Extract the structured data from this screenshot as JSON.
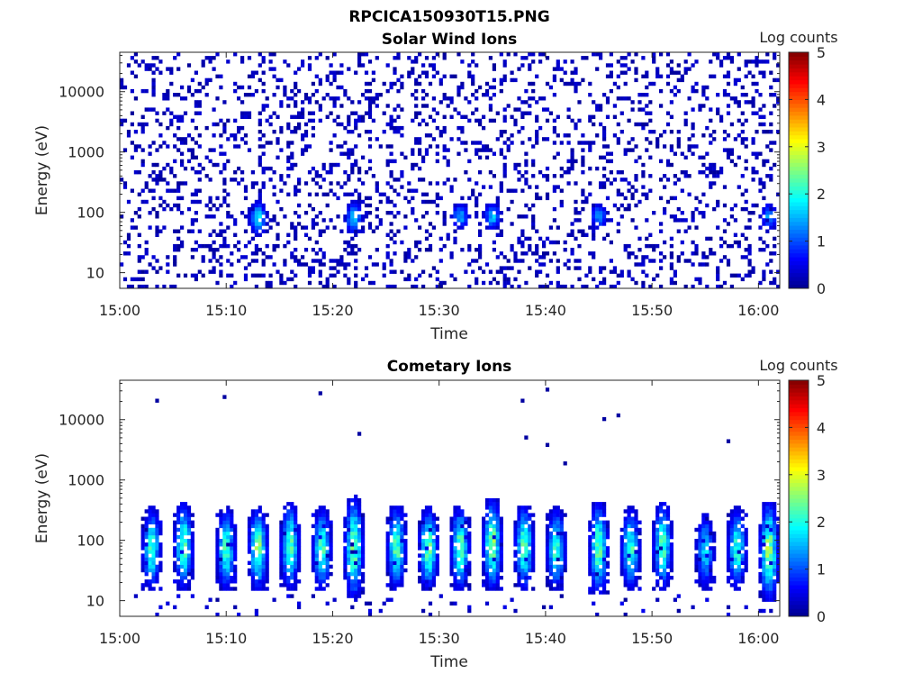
{
  "figure_title": "RPCICA150930T15.PNG",
  "colormap": [
    "#00008f",
    "#0000ff",
    "#0080ff",
    "#00ffff",
    "#80ff80",
    "#ffff00",
    "#ff8000",
    "#ff0000",
    "#800000"
  ],
  "chart_data": [
    {
      "type": "heatmap",
      "title": "Solar Wind Ions",
      "xlabel": "Time",
      "ylabel": "Energy (eV)",
      "y_scale": "log",
      "xlim": [
        "15:00",
        "16:02"
      ],
      "ylim": [
        5.5,
        45000
      ],
      "x_ticks": [
        "15:00",
        "15:10",
        "15:20",
        "15:30",
        "15:40",
        "15:50",
        "16:00"
      ],
      "y_ticks": [
        10,
        100,
        1000,
        10000
      ],
      "y_tick_labels": [
        "10",
        "100",
        "1000",
        "10000"
      ],
      "colorbar": {
        "label": "Log counts",
        "range": [
          0,
          5
        ],
        "ticks": [
          "0",
          "1",
          "2",
          "3",
          "4",
          "5"
        ]
      },
      "pattern": "sparse",
      "bursts": [
        {
          "time": "15:13",
          "energy_lo": 40,
          "energy_hi": 160,
          "peak_log_counts": 1.8
        },
        {
          "time": "15:22",
          "energy_lo": 40,
          "energy_hi": 160,
          "peak_log_counts": 1.6
        },
        {
          "time": "15:32",
          "energy_lo": 50,
          "energy_hi": 150,
          "peak_log_counts": 1.5
        },
        {
          "time": "15:35",
          "energy_lo": 50,
          "energy_hi": 150,
          "peak_log_counts": 1.6
        },
        {
          "time": "15:45",
          "energy_lo": 50,
          "energy_hi": 150,
          "peak_log_counts": 1.4
        },
        {
          "time": "16:01",
          "energy_lo": 50,
          "energy_hi": 150,
          "peak_log_counts": 1.4
        }
      ]
    },
    {
      "type": "heatmap",
      "title": "Cometary Ions",
      "xlabel": "Time",
      "ylabel": "Energy (eV)",
      "y_scale": "log",
      "xlim": [
        "15:00",
        "16:02"
      ],
      "ylim": [
        5.5,
        45000
      ],
      "x_ticks": [
        "15:00",
        "15:10",
        "15:20",
        "15:30",
        "15:40",
        "15:50",
        "16:00"
      ],
      "y_ticks": [
        10,
        100,
        1000,
        10000
      ],
      "y_tick_labels": [
        "10",
        "100",
        "1000",
        "10000"
      ],
      "colorbar": {
        "label": "Log counts",
        "range": [
          0,
          5
        ],
        "ticks": [
          "0",
          "1",
          "2",
          "3",
          "4",
          "5"
        ]
      },
      "pattern": "bursts",
      "bursts": [
        {
          "time": "15:03",
          "energy_lo": 15,
          "energy_hi": 350,
          "peak_log_counts": 2.2
        },
        {
          "time": "15:06",
          "energy_lo": 15,
          "energy_hi": 450,
          "peak_log_counts": 2.3
        },
        {
          "time": "15:10",
          "energy_lo": 15,
          "energy_hi": 350,
          "peak_log_counts": 2.2
        },
        {
          "time": "15:13",
          "energy_lo": 15,
          "energy_hi": 350,
          "peak_log_counts": 2.6
        },
        {
          "time": "15:16",
          "energy_lo": 15,
          "energy_hi": 450,
          "peak_log_counts": 2.3
        },
        {
          "time": "15:19",
          "energy_lo": 15,
          "energy_hi": 350,
          "peak_log_counts": 2.3
        },
        {
          "time": "15:22",
          "energy_lo": 10,
          "energy_hi": 550,
          "peak_log_counts": 2.5
        },
        {
          "time": "15:26",
          "energy_lo": 15,
          "energy_hi": 400,
          "peak_log_counts": 2.3
        },
        {
          "time": "15:29",
          "energy_lo": 15,
          "energy_hi": 350,
          "peak_log_counts": 2.5
        },
        {
          "time": "15:32",
          "energy_lo": 15,
          "energy_hi": 400,
          "peak_log_counts": 2.4
        },
        {
          "time": "15:35",
          "energy_lo": 15,
          "energy_hi": 500,
          "peak_log_counts": 2.6
        },
        {
          "time": "15:38",
          "energy_lo": 15,
          "energy_hi": 400,
          "peak_log_counts": 2.4
        },
        {
          "time": "15:41",
          "energy_lo": 15,
          "energy_hi": 350,
          "peak_log_counts": 2.2
        },
        {
          "time": "15:45",
          "energy_lo": 12,
          "energy_hi": 450,
          "peak_log_counts": 2.4
        },
        {
          "time": "15:48",
          "energy_lo": 15,
          "energy_hi": 350,
          "peak_log_counts": 2.2
        },
        {
          "time": "15:51",
          "energy_lo": 15,
          "energy_hi": 450,
          "peak_log_counts": 2.3
        },
        {
          "time": "15:55",
          "energy_lo": 15,
          "energy_hi": 300,
          "peak_log_counts": 1.8
        },
        {
          "time": "15:58",
          "energy_lo": 15,
          "energy_hi": 350,
          "peak_log_counts": 2.2
        },
        {
          "time": "16:01",
          "energy_lo": 10,
          "energy_hi": 450,
          "peak_log_counts": 2.7
        }
      ]
    }
  ]
}
